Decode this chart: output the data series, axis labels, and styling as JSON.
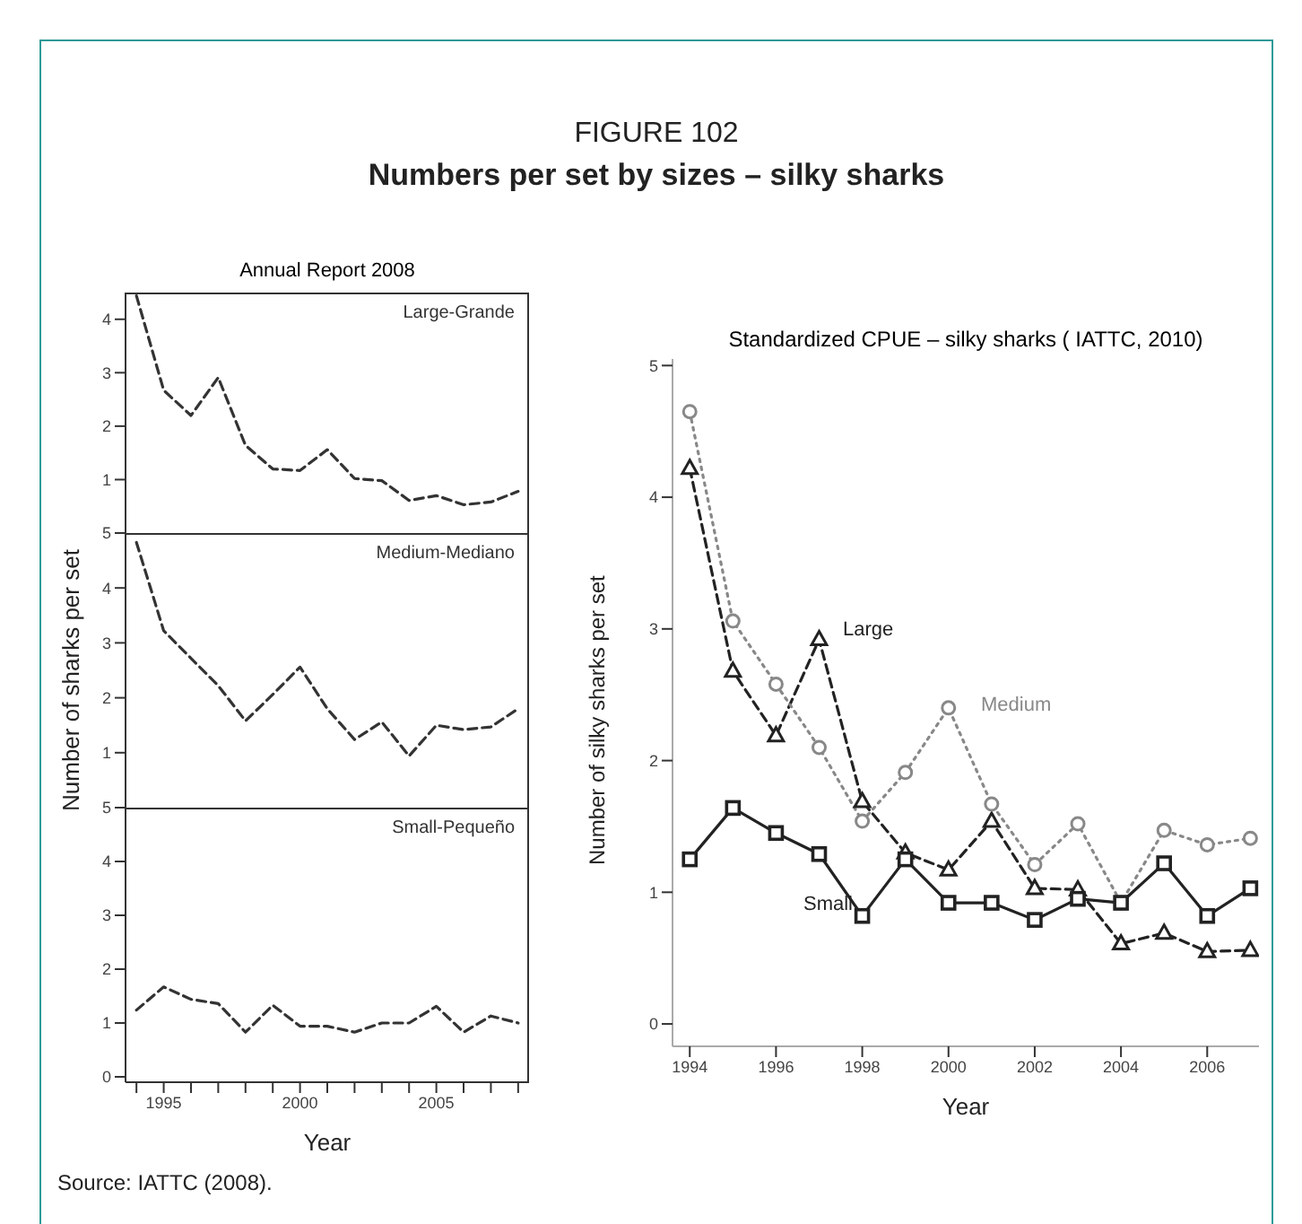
{
  "chart_data": [
    {
      "type": "other",
      "title": "FIGURE 102",
      "subtitle": "Numbers per set by sizes – silky sharks",
      "annotations": [
        "Source: IATTC (2008)."
      ]
    },
    {
      "type": "line",
      "title": "Annual Report 2008",
      "x": [
        1994,
        1995,
        1996,
        1997,
        1998,
        1999,
        2000,
        2001,
        2002,
        2003,
        2004,
        2005,
        2006,
        2007,
        2008
      ],
      "values": [
        4.44,
        2.67,
        2.2,
        2.91,
        1.64,
        1.2,
        1.17,
        1.56,
        1.02,
        0.98,
        0.61,
        0.7,
        0.53,
        0.58,
        0.78
      ],
      "color": "#333333",
      "line_style": "dashed",
      "xlim": [
        1993.6,
        2008.4
      ],
      "ylim": [
        0,
        4.5
      ],
      "yticks": [
        1,
        2,
        3,
        4
      ],
      "tick_labels": "y",
      "annotations": [
        "Large-Grande"
      ]
    },
    {
      "type": "line",
      "ylabel": "Number of sharks per set",
      "x": [
        1994,
        1995,
        1996,
        1997,
        1998,
        1999,
        2000,
        2001,
        2002,
        2003,
        2004,
        2005,
        2006,
        2007,
        2008
      ],
      "values": [
        4.83,
        3.22,
        2.72,
        2.22,
        1.58,
        2.06,
        2.56,
        1.8,
        1.24,
        1.56,
        0.94,
        1.5,
        1.42,
        1.47,
        1.8
      ],
      "color": "#333333",
      "line_style": "dashed",
      "xlim": [
        1993.6,
        2008.4
      ],
      "ylim": [
        0,
        5
      ],
      "yticks": [
        1,
        2,
        3,
        4,
        5
      ],
      "tick_labels": "y",
      "annotations": [
        "Medium-Mediano"
      ]
    },
    {
      "type": "line",
      "xlabel": "Year",
      "x": [
        1994,
        1995,
        1996,
        1997,
        1998,
        1999,
        2000,
        2001,
        2002,
        2003,
        2004,
        2005,
        2006,
        2007,
        2008
      ],
      "values": [
        1.24,
        1.67,
        1.44,
        1.36,
        0.83,
        1.33,
        0.94,
        0.94,
        0.83,
        1.0,
        1.0,
        1.31,
        0.83,
        1.13,
        1.0
      ],
      "color": "#333333",
      "line_style": "dashed",
      "xlim": [
        1993.6,
        2008.4
      ],
      "xticks": [
        {
          "value": 1994,
          "label": null
        },
        1995,
        {
          "value": 1996,
          "label": null
        },
        {
          "value": 1997,
          "label": null
        },
        {
          "value": 1998,
          "label": null
        },
        {
          "value": 1999,
          "label": null
        },
        2000,
        {
          "value": 2001,
          "label": null
        },
        {
          "value": 2002,
          "label": null
        },
        {
          "value": 2003,
          "label": null
        },
        {
          "value": 2004,
          "label": null
        },
        2005,
        {
          "value": 2006,
          "label": null
        },
        {
          "value": 2007,
          "label": null
        },
        {
          "value": 2008,
          "label": null
        }
      ],
      "ylim": [
        -0.1,
        5
      ],
      "yticks": [
        0,
        1,
        2,
        3,
        4,
        5
      ],
      "annotations": [
        "Small-Pequeño"
      ]
    },
    {
      "type": "line",
      "title": "Standardized CPUE – silky sharks  ( IATTC, 2010)",
      "xlabel": "Year",
      "ylabel": "Number of silky  sharks per set",
      "x": [
        1994,
        1995,
        1996,
        1997,
        1998,
        1999,
        2000,
        2001,
        2002,
        2003,
        2004,
        2005,
        2006,
        2007
      ],
      "xlim": [
        1993.6,
        2007.2
      ],
      "xticks": [
        1994,
        1996,
        1998,
        2000,
        2002,
        2004,
        2006
      ],
      "ylim": [
        -0.17,
        5.05
      ],
      "yticks": [
        0,
        1,
        2,
        3,
        4,
        5
      ],
      "series": [
        {
          "name": "Large",
          "color": "#222222",
          "marker": "triangle",
          "line_style": "dashed",
          "values": [
            4.22,
            2.68,
            2.19,
            2.92,
            1.69,
            1.3,
            1.17,
            1.54,
            1.03,
            1.02,
            0.61,
            0.69,
            0.55,
            0.56
          ]
        },
        {
          "name": "Medium",
          "color": "#888888",
          "marker": "circle",
          "line_style": "dotted",
          "values": [
            4.65,
            3.06,
            2.58,
            2.1,
            1.54,
            1.91,
            2.4,
            1.67,
            1.21,
            1.52,
            0.92,
            1.47,
            1.36,
            1.41
          ]
        },
        {
          "name": "Small",
          "color": "#222222",
          "marker": "square",
          "line_style": "solid",
          "values": [
            1.25,
            1.64,
            1.45,
            1.29,
            0.82,
            1.25,
            0.92,
            0.92,
            0.79,
            0.95,
            0.92,
            1.22,
            0.82,
            1.03
          ]
        }
      ]
    }
  ]
}
